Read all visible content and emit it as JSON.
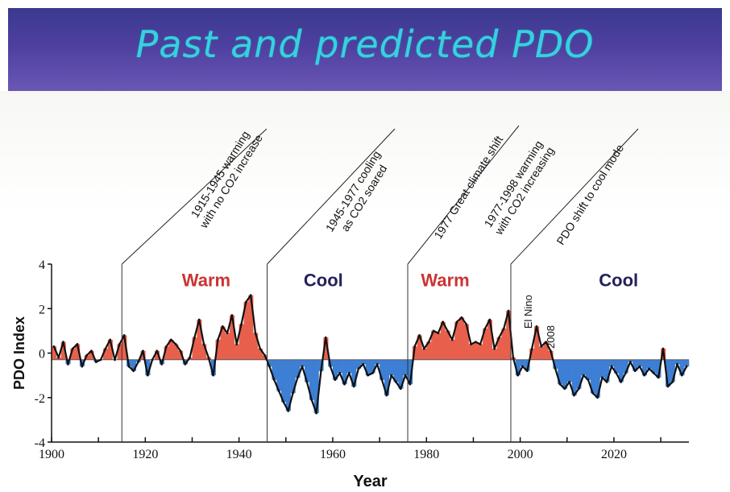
{
  "slide": {
    "title": "Past and predicted PDO"
  },
  "chart_data": {
    "type": "bar",
    "xlabel": "Year",
    "ylabel": "PDO Index",
    "xlim": [
      1900,
      2036
    ],
    "ylim": [
      -4,
      4
    ],
    "xticks": [
      "1900",
      "1920",
      "1940",
      "1960",
      "1980",
      "2000",
      "2020"
    ],
    "yticks": [
      "-4",
      "-2",
      "0",
      "2",
      "4"
    ],
    "baseline": -0.3,
    "regime_labels": [
      {
        "text": "Warm",
        "color": "#cc3333",
        "x": 1933,
        "y": 3.0
      },
      {
        "text": "Cool",
        "color": "#22225a",
        "x": 1958,
        "y": 3.0
      },
      {
        "text": "Warm",
        "color": "#cc3333",
        "x": 1984,
        "y": 3.0
      },
      {
        "text": "Cool",
        "color": "#22225a",
        "x": 2021,
        "y": 3.0
      }
    ],
    "regime_shift_years": [
      1915,
      1946,
      1976,
      1998
    ],
    "annotations": [
      {
        "line1": "1915-1945 warming",
        "line2": "with no CO2 increase",
        "anchor_year": 1915
      },
      {
        "line1": "1945-1977 cooling",
        "line2": "as CO2 soared",
        "anchor_year": 1946
      },
      {
        "line1": "1977 Great climate shift",
        "line2": "",
        "anchor_year": 1976
      },
      {
        "line1": "1977-1998 warming",
        "line2": "with CO2 increasing",
        "anchor_year": 1986
      },
      {
        "line1": "PDO shift to cool mode",
        "line2": "",
        "anchor_year": 1998
      }
    ],
    "event_labels": [
      {
        "text": "El Nino",
        "x": 2002.5,
        "y": 1.1
      },
      {
        "text": "2008",
        "x": 2007.3,
        "y": 0.2
      }
    ],
    "series": [
      {
        "x": [
          1900,
          1901,
          1902,
          1903,
          1904,
          1905,
          1906,
          1907,
          1908,
          1909,
          1910,
          1911,
          1912,
          1913,
          1914,
          1915,
          1916,
          1917,
          1918,
          1919,
          1920,
          1921,
          1922,
          1923,
          1924,
          1925,
          1926,
          1927,
          1928,
          1929,
          1930,
          1931,
          1932,
          1933,
          1934,
          1935,
          1936,
          1937,
          1938,
          1939,
          1940,
          1941,
          1942,
          1943,
          1944,
          1945,
          1946,
          1947,
          1948,
          1949,
          1950,
          1951,
          1952,
          1953,
          1954,
          1955,
          1956,
          1957,
          1958,
          1959,
          1960,
          1961,
          1962,
          1963,
          1964,
          1965,
          1966,
          1967,
          1968,
          1969,
          1970,
          1971,
          1972,
          1973,
          1974,
          1975,
          1976,
          1977,
          1978,
          1979,
          1980,
          1981,
          1982,
          1983,
          1984,
          1985,
          1986,
          1987,
          1988,
          1989,
          1990,
          1991,
          1992,
          1993,
          1994,
          1995,
          1996,
          1997,
          1998,
          1999,
          2000,
          2001,
          2002,
          2003,
          2004,
          2005,
          2006,
          2007,
          2008,
          2009,
          2010,
          2011,
          2012,
          2013,
          2014,
          2015,
          2016,
          2017,
          2018,
          2019,
          2020,
          2021,
          2022,
          2023,
          2024,
          2025,
          2026,
          2027,
          2028,
          2029,
          2030,
          2031,
          2032,
          2033,
          2034,
          2035
        ],
        "values": [
          0.3,
          -0.2,
          0.5,
          -0.5,
          0.2,
          0.4,
          -0.6,
          -0.1,
          0.1,
          -0.4,
          -0.3,
          0.2,
          0.6,
          -0.3,
          0.4,
          0.8,
          -0.6,
          -0.8,
          -0.4,
          0.1,
          -1.0,
          -0.3,
          0.1,
          -0.5,
          0.3,
          0.6,
          0.4,
          0.1,
          -0.5,
          -0.2,
          0.7,
          1.5,
          0.4,
          -0.2,
          -1.0,
          0.6,
          1.2,
          0.9,
          1.7,
          0.4,
          1.3,
          2.3,
          2.6,
          0.9,
          0.2,
          -0.1,
          -0.6,
          -1.2,
          -1.7,
          -2.2,
          -2.6,
          -1.8,
          -1.1,
          -0.6,
          -1.3,
          -2.1,
          -2.7,
          -0.8,
          0.7,
          -0.6,
          -1.2,
          -0.9,
          -1.4,
          -0.9,
          -1.5,
          -0.7,
          -0.5,
          -1.0,
          -0.9,
          -0.5,
          -1.2,
          -1.9,
          -1.0,
          -1.3,
          -1.6,
          -1.0,
          -1.4,
          0.3,
          0.8,
          0.2,
          0.5,
          1.0,
          0.9,
          1.4,
          1.0,
          0.6,
          1.4,
          1.6,
          1.3,
          0.4,
          0.5,
          0.4,
          1.1,
          1.5,
          0.2,
          0.7,
          1.1,
          1.9,
          -0.2,
          -1.0,
          -0.6,
          -0.8,
          0.2,
          1.2,
          0.3,
          0.5,
          0.1,
          -0.7,
          -1.4,
          -1.6,
          -1.3,
          -1.9,
          -1.6,
          -1.0,
          -1.2,
          -1.8,
          -2.0,
          -1.1,
          -1.3,
          -0.6,
          -0.9,
          -1.3,
          -0.9,
          -0.4,
          -0.8,
          -0.6,
          -1.0,
          -0.7,
          -0.9,
          -1.1,
          0.2,
          -1.5,
          -1.3,
          -0.5,
          -1.0,
          -0.6
        ]
      }
    ]
  }
}
